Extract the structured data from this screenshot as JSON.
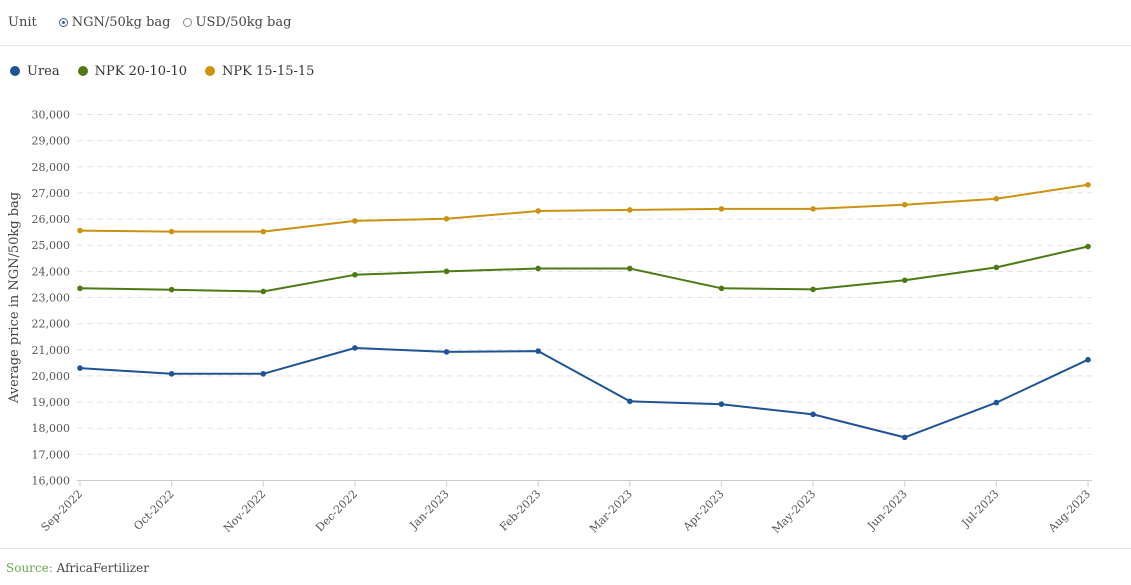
{
  "unit": {
    "label": "Unit",
    "options": [
      {
        "label": "NGN/50kg bag",
        "checked": true
      },
      {
        "label": "USD/50kg bag",
        "checked": false
      }
    ]
  },
  "footer": {
    "source_label": "Source:",
    "source_value": "AfricaFertilizer"
  },
  "chart_data": {
    "type": "line",
    "ylabel": "Average price in NGN/50kg bag",
    "xlabel": "",
    "ylim": [
      16000,
      30000
    ],
    "yticks": [
      16000,
      17000,
      18000,
      19000,
      20000,
      21000,
      22000,
      23000,
      24000,
      25000,
      26000,
      27000,
      28000,
      29000,
      30000
    ],
    "ytick_labels": [
      "16,000",
      "17,000",
      "18,000",
      "19,000",
      "20,000",
      "21,000",
      "22,000",
      "23,000",
      "24,000",
      "25,000",
      "26,000",
      "27,000",
      "28,000",
      "29,000",
      "30,000"
    ],
    "categories": [
      "Sep-2022",
      "Oct-2022",
      "Nov-2022",
      "Dec-2022",
      "Jan-2023",
      "Feb-2023",
      "Mar-2023",
      "Apr-2023",
      "May-2023",
      "Jun-2023",
      "Jul-2023",
      "Aug-2023"
    ],
    "grid": "horizontal dashed",
    "legend_position": "top-left",
    "series": [
      {
        "name": "Urea",
        "color": "#1f5394",
        "values": [
          20300,
          20080,
          20080,
          21070,
          20920,
          20950,
          19030,
          18920,
          18530,
          17650,
          18980,
          20620
        ]
      },
      {
        "name": "NPK 20-10-10",
        "color": "#4d7a16",
        "values": [
          23350,
          23300,
          23230,
          23870,
          24000,
          24110,
          24110,
          23350,
          23310,
          23660,
          24150,
          24950
        ]
      },
      {
        "name": "NPK 15-15-15",
        "color": "#cc9214",
        "values": [
          25560,
          25520,
          25520,
          25930,
          26010,
          26310,
          26350,
          26390,
          26390,
          26550,
          26780,
          27310
        ]
      }
    ]
  }
}
